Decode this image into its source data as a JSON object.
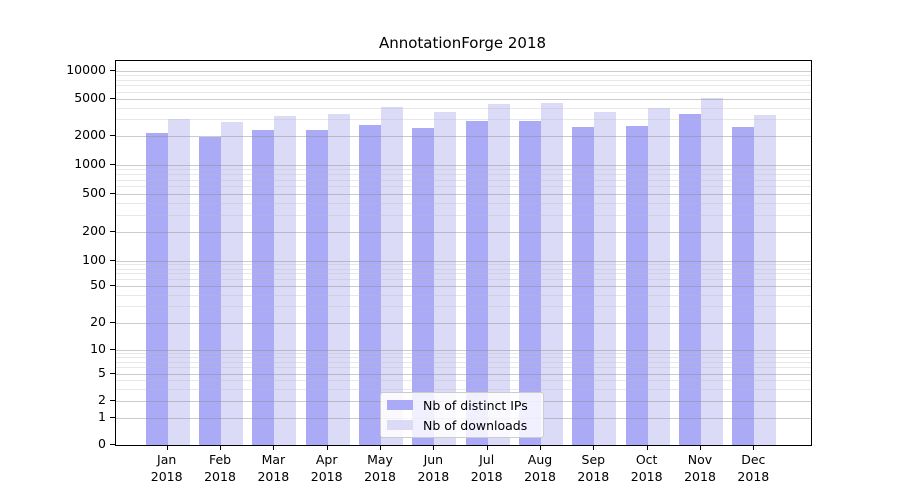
{
  "title": "AnnotationForge 2018",
  "chart_data": {
    "type": "bar",
    "title": "AnnotationForge 2018",
    "scale": "symlog",
    "grid": true,
    "legend_position": "lower center",
    "categories": [
      {
        "month": "Jan",
        "year": "2018"
      },
      {
        "month": "Feb",
        "year": "2018"
      },
      {
        "month": "Mar",
        "year": "2018"
      },
      {
        "month": "Apr",
        "year": "2018"
      },
      {
        "month": "May",
        "year": "2018"
      },
      {
        "month": "Jun",
        "year": "2018"
      },
      {
        "month": "Jul",
        "year": "2018"
      },
      {
        "month": "Aug",
        "year": "2018"
      },
      {
        "month": "Sep",
        "year": "2018"
      },
      {
        "month": "Oct",
        "year": "2018"
      },
      {
        "month": "Nov",
        "year": "2018"
      },
      {
        "month": "Dec",
        "year": "2018"
      }
    ],
    "series": [
      {
        "name": "Nb of distinct IPs",
        "color": "#aaaaf7",
        "values": [
          2150,
          1950,
          2300,
          2300,
          2600,
          2400,
          2850,
          2850,
          2450,
          2550,
          3450,
          2450
        ]
      },
      {
        "name": "Nb of downloads",
        "color": "#dbdbf8",
        "values": [
          3000,
          2800,
          3300,
          3450,
          4100,
          3600,
          4400,
          4550,
          3600,
          3950,
          5150,
          3350
        ]
      }
    ],
    "y_ticks": [
      0,
      1,
      2,
      5,
      10,
      20,
      50,
      100,
      200,
      500,
      1000,
      2000,
      5000,
      10000
    ],
    "ylim": [
      0,
      12600
    ]
  }
}
